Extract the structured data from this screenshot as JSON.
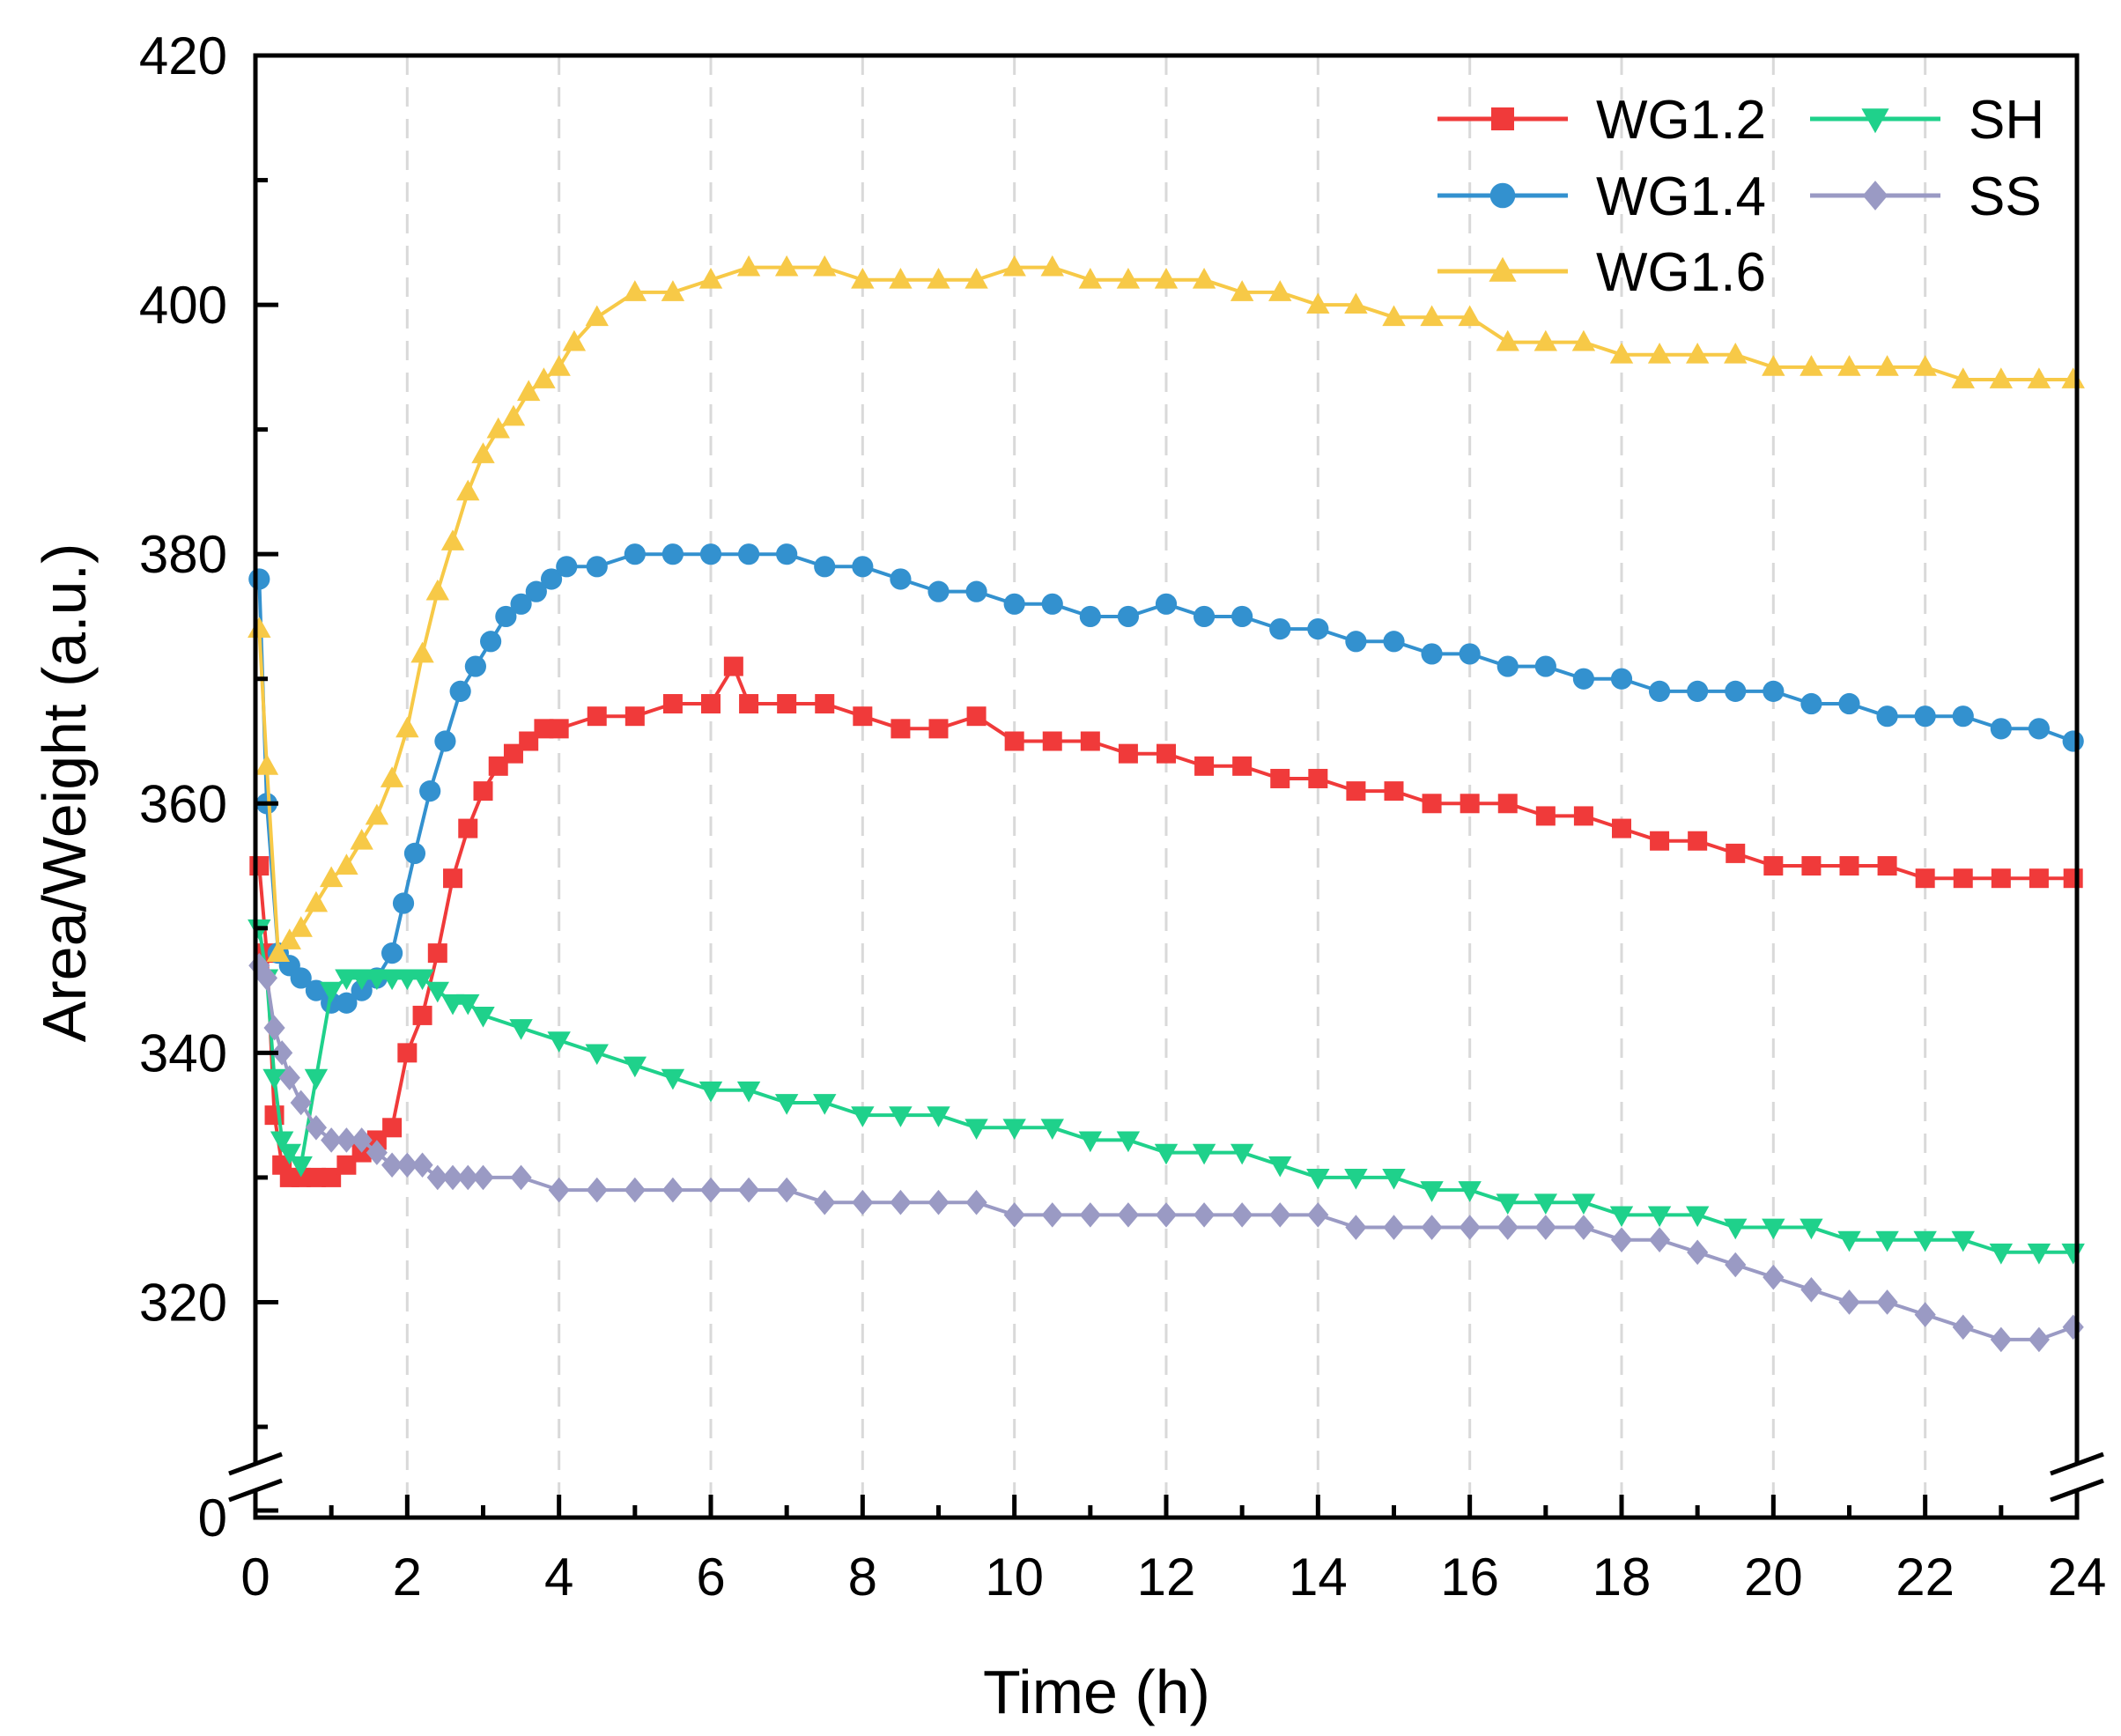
{
  "chart_data": {
    "type": "line",
    "title": "",
    "xlabel": "Time (h)",
    "ylabel": "Area/Weight (a.u.)",
    "xlim": [
      0,
      24
    ],
    "ylim": [
      310,
      420
    ],
    "y_axis_break": true,
    "x_ticks": [
      "0",
      "2",
      "4",
      "6",
      "8",
      "10",
      "12",
      "14",
      "16",
      "18",
      "20",
      "22",
      "24"
    ],
    "y_ticks": [
      "320",
      "340",
      "360",
      "380",
      "400",
      "420"
    ],
    "y_break_tick": "0",
    "grid": "vertical dashed",
    "legend_position": "top-right",
    "series": [
      {
        "name": "WG1.2",
        "color": "#f03a3a",
        "marker": "square",
        "points": [
          [
            0.05,
            355
          ],
          [
            0.15,
            348
          ],
          [
            0.25,
            335
          ],
          [
            0.35,
            331
          ],
          [
            0.45,
            330
          ],
          [
            0.6,
            330
          ],
          [
            0.8,
            330
          ],
          [
            1.0,
            330
          ],
          [
            1.2,
            331
          ],
          [
            1.4,
            332
          ],
          [
            1.6,
            333
          ],
          [
            1.8,
            334
          ],
          [
            2.0,
            340
          ],
          [
            2.2,
            343
          ],
          [
            2.4,
            348
          ],
          [
            2.6,
            354
          ],
          [
            2.8,
            358
          ],
          [
            3.0,
            361
          ],
          [
            3.2,
            363
          ],
          [
            3.4,
            364
          ],
          [
            3.6,
            365
          ],
          [
            3.8,
            366
          ],
          [
            4.0,
            366
          ],
          [
            4.5,
            367
          ],
          [
            5.0,
            367
          ],
          [
            5.5,
            368
          ],
          [
            6.0,
            368
          ],
          [
            6.3,
            371
          ],
          [
            6.5,
            368
          ],
          [
            7.0,
            368
          ],
          [
            7.5,
            368
          ],
          [
            8.0,
            367
          ],
          [
            8.5,
            366
          ],
          [
            9.0,
            366
          ],
          [
            9.5,
            367
          ],
          [
            10.0,
            365
          ],
          [
            10.5,
            365
          ],
          [
            11.0,
            365
          ],
          [
            11.5,
            364
          ],
          [
            12.0,
            364
          ],
          [
            12.5,
            363
          ],
          [
            13.0,
            363
          ],
          [
            13.5,
            362
          ],
          [
            14.0,
            362
          ],
          [
            14.5,
            361
          ],
          [
            15.0,
            361
          ],
          [
            15.5,
            360
          ],
          [
            16.0,
            360
          ],
          [
            16.5,
            360
          ],
          [
            17.0,
            359
          ],
          [
            17.5,
            359
          ],
          [
            18.0,
            358
          ],
          [
            18.5,
            357
          ],
          [
            19.0,
            357
          ],
          [
            19.5,
            356
          ],
          [
            20.0,
            355
          ],
          [
            20.5,
            355
          ],
          [
            21.0,
            355
          ],
          [
            21.5,
            355
          ],
          [
            22.0,
            354
          ],
          [
            22.5,
            354
          ],
          [
            23.0,
            354
          ],
          [
            23.5,
            354
          ],
          [
            23.95,
            354
          ]
        ]
      },
      {
        "name": "WG1.4",
        "color": "#3391cf",
        "marker": "circle",
        "points": [
          [
            0.05,
            378
          ],
          [
            0.15,
            360
          ],
          [
            0.3,
            348
          ],
          [
            0.45,
            347
          ],
          [
            0.6,
            346
          ],
          [
            0.8,
            345
          ],
          [
            1.0,
            344
          ],
          [
            1.2,
            344
          ],
          [
            1.4,
            345
          ],
          [
            1.6,
            346
          ],
          [
            1.8,
            348
          ],
          [
            1.95,
            352
          ],
          [
            2.1,
            356
          ],
          [
            2.3,
            361
          ],
          [
            2.5,
            365
          ],
          [
            2.7,
            369
          ],
          [
            2.9,
            371
          ],
          [
            3.1,
            373
          ],
          [
            3.3,
            375
          ],
          [
            3.5,
            376
          ],
          [
            3.7,
            377
          ],
          [
            3.9,
            378
          ],
          [
            4.1,
            379
          ],
          [
            4.5,
            379
          ],
          [
            5.0,
            380
          ],
          [
            5.5,
            380
          ],
          [
            6.0,
            380
          ],
          [
            6.5,
            380
          ],
          [
            7.0,
            380
          ],
          [
            7.5,
            379
          ],
          [
            8.0,
            379
          ],
          [
            8.5,
            378
          ],
          [
            9.0,
            377
          ],
          [
            9.5,
            377
          ],
          [
            10.0,
            376
          ],
          [
            10.5,
            376
          ],
          [
            11.0,
            375
          ],
          [
            11.5,
            375
          ],
          [
            12.0,
            376
          ],
          [
            12.5,
            375
          ],
          [
            13.0,
            375
          ],
          [
            13.5,
            374
          ],
          [
            14.0,
            374
          ],
          [
            14.5,
            373
          ],
          [
            15.0,
            373
          ],
          [
            15.5,
            372
          ],
          [
            16.0,
            372
          ],
          [
            16.5,
            371
          ],
          [
            17.0,
            371
          ],
          [
            17.5,
            370
          ],
          [
            18.0,
            370
          ],
          [
            18.5,
            369
          ],
          [
            19.0,
            369
          ],
          [
            19.5,
            369
          ],
          [
            20.0,
            369
          ],
          [
            20.5,
            368
          ],
          [
            21.0,
            368
          ],
          [
            21.5,
            367
          ],
          [
            22.0,
            367
          ],
          [
            22.5,
            367
          ],
          [
            23.0,
            366
          ],
          [
            23.5,
            366
          ],
          [
            23.95,
            365
          ]
        ]
      },
      {
        "name": "WG1.6",
        "color": "#f7c947",
        "marker": "triangle-up",
        "points": [
          [
            0.05,
            374
          ],
          [
            0.15,
            363
          ],
          [
            0.3,
            348
          ],
          [
            0.45,
            349
          ],
          [
            0.6,
            350
          ],
          [
            0.8,
            352
          ],
          [
            1.0,
            354
          ],
          [
            1.2,
            355
          ],
          [
            1.4,
            357
          ],
          [
            1.6,
            359
          ],
          [
            1.8,
            362
          ],
          [
            2.0,
            366
          ],
          [
            2.2,
            372
          ],
          [
            2.4,
            377
          ],
          [
            2.6,
            381
          ],
          [
            2.8,
            385
          ],
          [
            3.0,
            388
          ],
          [
            3.2,
            390
          ],
          [
            3.4,
            391
          ],
          [
            3.6,
            393
          ],
          [
            3.8,
            394
          ],
          [
            4.0,
            395
          ],
          [
            4.2,
            397
          ],
          [
            4.5,
            399
          ],
          [
            5.0,
            401
          ],
          [
            5.5,
            401
          ],
          [
            6.0,
            402
          ],
          [
            6.5,
            403
          ],
          [
            7.0,
            403
          ],
          [
            7.5,
            403
          ],
          [
            8.0,
            402
          ],
          [
            8.5,
            402
          ],
          [
            9.0,
            402
          ],
          [
            9.5,
            402
          ],
          [
            10.0,
            403
          ],
          [
            10.5,
            403
          ],
          [
            11.0,
            402
          ],
          [
            11.5,
            402
          ],
          [
            12.0,
            402
          ],
          [
            12.5,
            402
          ],
          [
            13.0,
            401
          ],
          [
            13.5,
            401
          ],
          [
            14.0,
            400
          ],
          [
            14.5,
            400
          ],
          [
            15.0,
            399
          ],
          [
            15.5,
            399
          ],
          [
            16.0,
            399
          ],
          [
            16.5,
            397
          ],
          [
            17.0,
            397
          ],
          [
            17.5,
            397
          ],
          [
            18.0,
            396
          ],
          [
            18.5,
            396
          ],
          [
            19.0,
            396
          ],
          [
            19.5,
            396
          ],
          [
            20.0,
            395
          ],
          [
            20.5,
            395
          ],
          [
            21.0,
            395
          ],
          [
            21.5,
            395
          ],
          [
            22.0,
            395
          ],
          [
            22.5,
            394
          ],
          [
            23.0,
            394
          ],
          [
            23.5,
            394
          ],
          [
            23.95,
            394
          ]
        ]
      },
      {
        "name": "SH",
        "color": "#1fd18b",
        "marker": "triangle-down",
        "points": [
          [
            0.05,
            350
          ],
          [
            0.15,
            346
          ],
          [
            0.25,
            338
          ],
          [
            0.35,
            333
          ],
          [
            0.45,
            332
          ],
          [
            0.6,
            331
          ],
          [
            0.8,
            338
          ],
          [
            1.0,
            345
          ],
          [
            1.2,
            346
          ],
          [
            1.4,
            346
          ],
          [
            1.6,
            346
          ],
          [
            1.8,
            346
          ],
          [
            2.0,
            346
          ],
          [
            2.2,
            346
          ],
          [
            2.4,
            345
          ],
          [
            2.6,
            344
          ],
          [
            2.8,
            344
          ],
          [
            3.0,
            343
          ],
          [
            3.5,
            342
          ],
          [
            4.0,
            341
          ],
          [
            4.5,
            340
          ],
          [
            5.0,
            339
          ],
          [
            5.5,
            338
          ],
          [
            6.0,
            337
          ],
          [
            6.5,
            337
          ],
          [
            7.0,
            336
          ],
          [
            7.5,
            336
          ],
          [
            8.0,
            335
          ],
          [
            8.5,
            335
          ],
          [
            9.0,
            335
          ],
          [
            9.5,
            334
          ],
          [
            10.0,
            334
          ],
          [
            10.5,
            334
          ],
          [
            11.0,
            333
          ],
          [
            11.5,
            333
          ],
          [
            12.0,
            332
          ],
          [
            12.5,
            332
          ],
          [
            13.0,
            332
          ],
          [
            13.5,
            331
          ],
          [
            14.0,
            330
          ],
          [
            14.5,
            330
          ],
          [
            15.0,
            330
          ],
          [
            15.5,
            329
          ],
          [
            16.0,
            329
          ],
          [
            16.5,
            328
          ],
          [
            17.0,
            328
          ],
          [
            17.5,
            328
          ],
          [
            18.0,
            327
          ],
          [
            18.5,
            327
          ],
          [
            19.0,
            327
          ],
          [
            19.5,
            326
          ],
          [
            20.0,
            326
          ],
          [
            20.5,
            326
          ],
          [
            21.0,
            325
          ],
          [
            21.5,
            325
          ],
          [
            22.0,
            325
          ],
          [
            22.5,
            325
          ],
          [
            23.0,
            324
          ],
          [
            23.5,
            324
          ],
          [
            23.95,
            324
          ]
        ]
      },
      {
        "name": "SS",
        "color": "#9a9ac4",
        "marker": "diamond",
        "points": [
          [
            0.05,
            347
          ],
          [
            0.15,
            346
          ],
          [
            0.25,
            342
          ],
          [
            0.35,
            340
          ],
          [
            0.45,
            338
          ],
          [
            0.6,
            336
          ],
          [
            0.8,
            334
          ],
          [
            1.0,
            333
          ],
          [
            1.2,
            333
          ],
          [
            1.4,
            333
          ],
          [
            1.6,
            332
          ],
          [
            1.8,
            331
          ],
          [
            2.0,
            331
          ],
          [
            2.2,
            331
          ],
          [
            2.4,
            330
          ],
          [
            2.6,
            330
          ],
          [
            2.8,
            330
          ],
          [
            3.0,
            330
          ],
          [
            3.5,
            330
          ],
          [
            4.0,
            329
          ],
          [
            4.5,
            329
          ],
          [
            5.0,
            329
          ],
          [
            5.5,
            329
          ],
          [
            6.0,
            329
          ],
          [
            6.5,
            329
          ],
          [
            7.0,
            329
          ],
          [
            7.5,
            328
          ],
          [
            8.0,
            328
          ],
          [
            8.5,
            328
          ],
          [
            9.0,
            328
          ],
          [
            9.5,
            328
          ],
          [
            10.0,
            327
          ],
          [
            10.5,
            327
          ],
          [
            11.0,
            327
          ],
          [
            11.5,
            327
          ],
          [
            12.0,
            327
          ],
          [
            12.5,
            327
          ],
          [
            13.0,
            327
          ],
          [
            13.5,
            327
          ],
          [
            14.0,
            327
          ],
          [
            14.5,
            326
          ],
          [
            15.0,
            326
          ],
          [
            15.5,
            326
          ],
          [
            16.0,
            326
          ],
          [
            16.5,
            326
          ],
          [
            17.0,
            326
          ],
          [
            17.5,
            326
          ],
          [
            18.0,
            325
          ],
          [
            18.5,
            325
          ],
          [
            19.0,
            324
          ],
          [
            19.5,
            323
          ],
          [
            20.0,
            322
          ],
          [
            20.5,
            321
          ],
          [
            21.0,
            320
          ],
          [
            21.5,
            320
          ],
          [
            22.0,
            319
          ],
          [
            22.5,
            318
          ],
          [
            23.0,
            317
          ],
          [
            23.5,
            317
          ],
          [
            23.95,
            318
          ]
        ]
      }
    ]
  }
}
